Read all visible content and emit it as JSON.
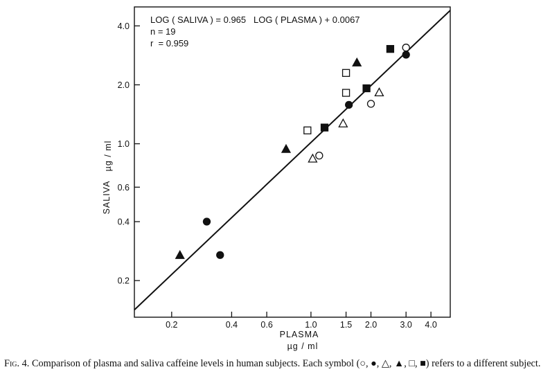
{
  "chart_data": {
    "type": "scatter",
    "title": "",
    "xlabel": "PLASMA",
    "xunit": "µg / ml",
    "ylabel": "SALIVA",
    "yunit": "µg / ml",
    "xscale": "log",
    "yscale": "log",
    "xlim": [
      0.13,
      5.0
    ],
    "ylim": [
      0.13,
      5.0
    ],
    "xticks": [
      0.2,
      0.4,
      0.6,
      1.0,
      1.5,
      2.0,
      3.0,
      4.0
    ],
    "xtick_labels": [
      "0.2",
      "0.4",
      "0.6",
      "1.0",
      "1.5",
      "2.0",
      "3.0",
      "4.0"
    ],
    "yticks": [
      0.2,
      0.4,
      0.6,
      1.0,
      2.0,
      4.0
    ],
    "ytick_labels": [
      "0.2",
      "0.4",
      "0.6",
      "1.0",
      "2.0",
      "4.0"
    ],
    "grid": false,
    "annotations": [
      "LOG ( SALIVA ) = 0.965   LOG ( PLASMA ) + 0.0067",
      "n = 19",
      "r  = 0.959"
    ],
    "regression": {
      "slope": 0.965,
      "intercept": 0.0067
    },
    "series": [
      {
        "marker": "open-circle",
        "points": [
          [
            1.1,
            0.87
          ],
          [
            2.0,
            1.6
          ],
          [
            3.0,
            3.1
          ]
        ]
      },
      {
        "marker": "filled-circle",
        "points": [
          [
            0.3,
            0.4
          ],
          [
            0.35,
            0.27
          ],
          [
            1.55,
            1.58
          ],
          [
            3.0,
            2.85
          ]
        ]
      },
      {
        "marker": "open-triangle",
        "points": [
          [
            1.02,
            0.84
          ],
          [
            1.45,
            1.27
          ],
          [
            2.2,
            1.83
          ]
        ]
      },
      {
        "marker": "filled-triangle",
        "points": [
          [
            0.22,
            0.27
          ],
          [
            0.75,
            0.94
          ],
          [
            1.7,
            2.6
          ]
        ]
      },
      {
        "marker": "open-square",
        "points": [
          [
            0.96,
            1.17
          ],
          [
            1.5,
            1.82
          ],
          [
            1.5,
            2.3
          ]
        ]
      },
      {
        "marker": "filled-square",
        "points": [
          [
            1.17,
            1.21
          ],
          [
            1.9,
            1.92
          ],
          [
            2.5,
            3.05
          ]
        ]
      }
    ]
  },
  "caption": {
    "fig": "Fig. 4.",
    "text": "Comparison of plasma and saliva caffeine levels in human subjects. Each symbol (○, ●, △, ▲, □, ■) refers to a different subject."
  }
}
